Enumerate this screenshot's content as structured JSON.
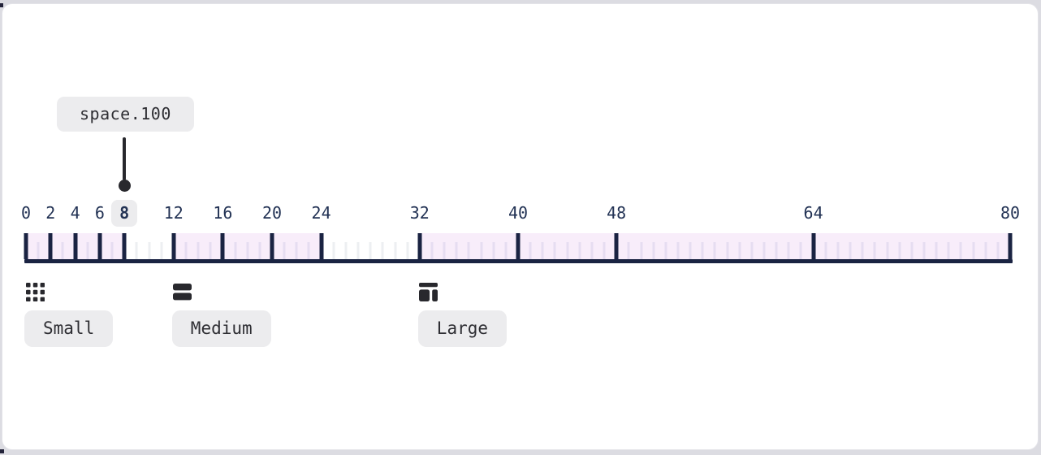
{
  "tooltip": {
    "label": "space.100"
  },
  "scale": {
    "min": 0,
    "max": 80,
    "major_ticks": [
      0,
      2,
      4,
      6,
      8,
      12,
      16,
      20,
      24,
      32,
      40,
      48,
      64,
      80
    ],
    "minor_tick_step": 1,
    "highlighted_tick": 8,
    "ranges": [
      {
        "label": "Small",
        "start": 0,
        "end": 8,
        "icon": "grid-dots-icon"
      },
      {
        "label": "Medium",
        "start": 12,
        "end": 24,
        "icon": "stacked-bars-icon"
      },
      {
        "label": "Large",
        "start": 32,
        "end": 80,
        "icon": "layout-panels-icon"
      }
    ]
  },
  "colors": {
    "navy": "#1a2342",
    "number_navy": "#223254",
    "pink_band": "#f8edfa",
    "pink_tick": "#e6ddf1",
    "gap_tick": "#edeff2",
    "pill_bg": "#ececee",
    "pill_text": "#2e2e33",
    "icon_ink": "#28282d",
    "page_bg": "#dcdce2",
    "card_bg": "#ffffff",
    "card_border": "#e3e3e8"
  }
}
